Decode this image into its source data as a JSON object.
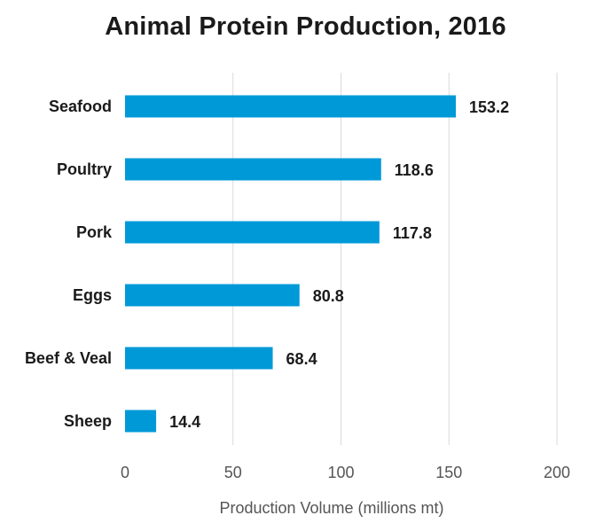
{
  "chart_data": {
    "type": "bar",
    "orientation": "horizontal",
    "title": "Animal Protein Production, 2016",
    "xlabel": "Production Volume (millions mt)",
    "ylabel": "",
    "categories": [
      "Seafood",
      "Poultry",
      "Pork",
      "Eggs",
      "Beef & Veal",
      "Sheep"
    ],
    "values": [
      153.2,
      118.6,
      117.8,
      80.8,
      68.4,
      14.4
    ],
    "value_labels": [
      "153.2",
      "118.6",
      "117.8",
      "80.8",
      "68.4",
      "14.4"
    ],
    "xlim": [
      0,
      200
    ],
    "xticks": [
      "0",
      "50",
      "100",
      "150",
      "200"
    ],
    "grid": "vertical",
    "bar_color": "#0099d8",
    "grid_color": "#d9d9d9"
  }
}
